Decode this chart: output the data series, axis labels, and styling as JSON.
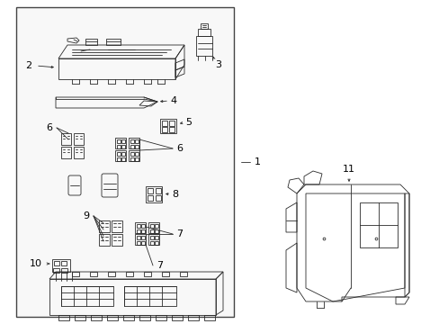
{
  "background_color": "#ffffff",
  "line_color": "#2a2a2a",
  "label_color": "#000000",
  "fig_width": 4.89,
  "fig_height": 3.6,
  "dpi": 100,
  "lw": 0.6
}
